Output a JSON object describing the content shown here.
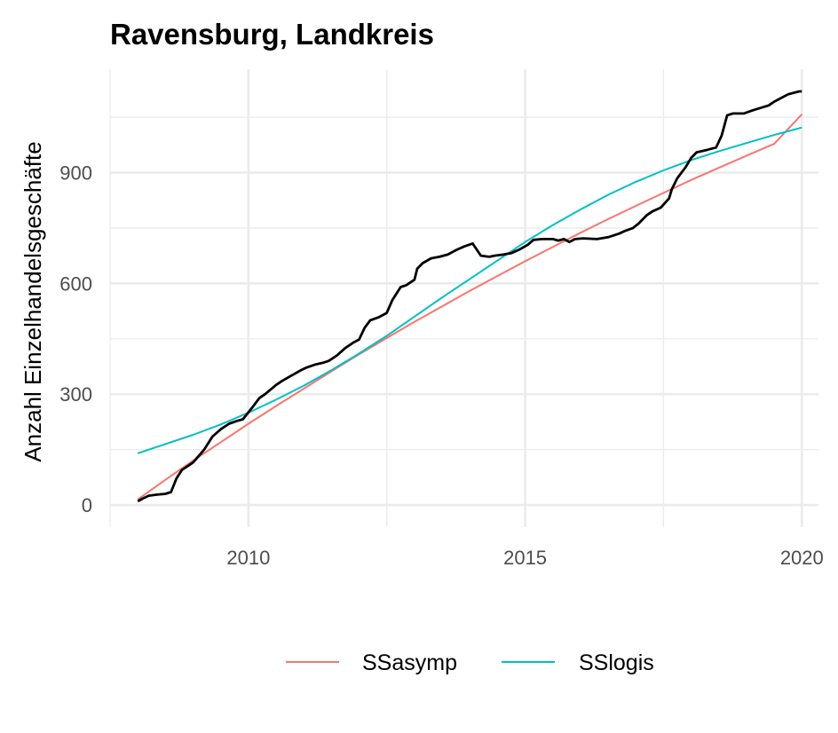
{
  "chart_data": {
    "type": "line",
    "title": "Ravensburg, Landkreis",
    "xlabel": "",
    "ylabel": "Anzahl Einzelhandelsgeschäfte",
    "xlim": [
      2007.5,
      2020.3
    ],
    "ylim": [
      -60,
      1180
    ],
    "x_ticks": [
      2010,
      2015,
      2020
    ],
    "y_ticks": [
      0,
      300,
      600,
      900
    ],
    "grid": true,
    "legend_position": "bottom",
    "series": [
      {
        "name": "",
        "color": "#000000",
        "x": [
          2008.0,
          2008.1,
          2008.2,
          2008.35,
          2008.5,
          2008.6,
          2008.7,
          2008.8,
          2009.0,
          2009.2,
          2009.35,
          2009.5,
          2009.65,
          2009.8,
          2009.9,
          2010.1,
          2010.2,
          2010.3,
          2010.5,
          2010.6,
          2010.75,
          2010.95,
          2011.05,
          2011.2,
          2011.35,
          2011.45,
          2011.6,
          2011.75,
          2011.9,
          2012.0,
          2012.1,
          2012.2,
          2012.35,
          2012.5,
          2012.6,
          2012.75,
          2012.85,
          2013.0,
          2013.05,
          2013.15,
          2013.3,
          2013.45,
          2013.6,
          2013.75,
          2013.9,
          2014.05,
          2014.2,
          2014.35,
          2014.45,
          2014.6,
          2014.75,
          2014.9,
          2015.05,
          2015.15,
          2015.3,
          2015.5,
          2015.6,
          2015.7,
          2015.8,
          2015.9,
          2016.05,
          2016.3,
          2016.5,
          2016.7,
          2016.8,
          2016.95,
          2017.05,
          2017.2,
          2017.3,
          2017.45,
          2017.6,
          2017.65,
          2017.75,
          2017.9,
          2018.0,
          2018.1,
          2018.3,
          2018.45,
          2018.55,
          2018.65,
          2018.75,
          2018.95,
          2019.1,
          2019.25,
          2019.4,
          2019.5,
          2019.6,
          2019.75,
          2019.95,
          2020.0
        ],
        "y": [
          10,
          18,
          25,
          28,
          30,
          35,
          72,
          95,
          115,
          150,
          185,
          205,
          220,
          228,
          232,
          270,
          290,
          300,
          325,
          335,
          348,
          365,
          372,
          380,
          385,
          390,
          405,
          425,
          440,
          448,
          480,
          500,
          508,
          520,
          555,
          590,
          595,
          610,
          640,
          655,
          668,
          672,
          678,
          690,
          700,
          708,
          675,
          672,
          675,
          678,
          682,
          692,
          705,
          718,
          720,
          720,
          716,
          720,
          712,
          720,
          722,
          720,
          725,
          735,
          742,
          750,
          762,
          785,
          795,
          805,
          830,
          855,
          885,
          915,
          940,
          955,
          962,
          968,
          1000,
          1055,
          1060,
          1060,
          1068,
          1075,
          1082,
          1092,
          1100,
          1112,
          1120,
          1120
        ]
      },
      {
        "name": "SSasymp",
        "color": "#F8766D",
        "x": [
          2008.0,
          2008.5,
          2009.0,
          2009.5,
          2010.0,
          2010.5,
          2011.0,
          2011.5,
          2012.0,
          2012.5,
          2013.0,
          2013.5,
          2014.0,
          2014.5,
          2015.0,
          2015.5,
          2016.0,
          2016.5,
          2017.0,
          2017.5,
          2018.0,
          2018.5,
          2019.0,
          2019.5,
          2020.0
        ],
        "y": [
          15,
          68,
          120,
          170,
          220,
          268,
          315,
          362,
          408,
          452,
          496,
          538,
          580,
          620,
          660,
          699,
          737,
          774,
          810,
          845,
          880,
          913,
          946,
          978,
          1058
        ]
      },
      {
        "name": "SSlogis",
        "color": "#00BFC4",
        "x": [
          2008.0,
          2008.5,
          2009.0,
          2009.5,
          2010.0,
          2010.5,
          2011.0,
          2011.5,
          2012.0,
          2012.5,
          2013.0,
          2013.5,
          2014.0,
          2014.5,
          2015.0,
          2015.5,
          2016.0,
          2016.5,
          2017.0,
          2017.5,
          2018.0,
          2018.5,
          2019.0,
          2019.5,
          2020.0
        ],
        "y": [
          140,
          165,
          190,
          218,
          250,
          285,
          323,
          365,
          410,
          458,
          510,
          562,
          612,
          662,
          712,
          758,
          800,
          840,
          875,
          906,
          934,
          958,
          980,
          1002,
          1022
        ]
      }
    ]
  }
}
